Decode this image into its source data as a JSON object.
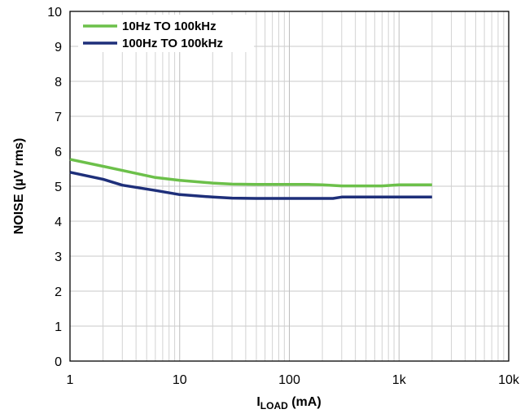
{
  "chart_data": {
    "type": "line",
    "x_scale": "log",
    "xlim": [
      1,
      10000
    ],
    "ylim": [
      0,
      10
    ],
    "grid": true,
    "legend_position": "top-left",
    "xlabel_main": "I",
    "xlabel_sub": "LOAD",
    "xlabel_suffix": " (mA)",
    "ylabel": "NOISE (µV rms)",
    "x_ticks": [
      {
        "value": 1,
        "label": "1"
      },
      {
        "value": 10,
        "label": "10"
      },
      {
        "value": 100,
        "label": "100"
      },
      {
        "value": 1000,
        "label": "1k"
      },
      {
        "value": 10000,
        "label": "10k"
      }
    ],
    "y_ticks": [
      0,
      1,
      2,
      3,
      4,
      5,
      6,
      7,
      8,
      9,
      10
    ],
    "series": [
      {
        "name": "10Hz TO 100kHz",
        "color": "#6cc04a",
        "x": [
          1,
          2,
          3,
          6,
          10,
          20,
          30,
          50,
          100,
          150,
          200,
          300,
          500,
          700,
          1000,
          2000
        ],
        "y": [
          5.77,
          5.57,
          5.45,
          5.25,
          5.17,
          5.09,
          5.06,
          5.05,
          5.05,
          5.05,
          5.04,
          5.01,
          5.01,
          5.01,
          5.04,
          5.04
        ]
      },
      {
        "name": "100Hz TO 100kHz",
        "color": "#1e2f7a",
        "x": [
          1,
          2,
          3,
          6,
          10,
          20,
          30,
          50,
          100,
          200,
          250,
          300,
          500,
          1000,
          2000
        ],
        "y": [
          5.4,
          5.2,
          5.03,
          4.88,
          4.76,
          4.69,
          4.66,
          4.65,
          4.65,
          4.65,
          4.65,
          4.69,
          4.69,
          4.69,
          4.69
        ]
      }
    ]
  }
}
